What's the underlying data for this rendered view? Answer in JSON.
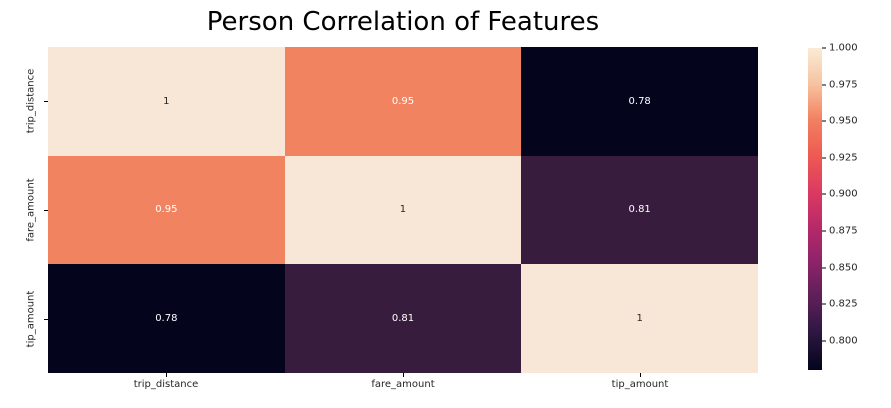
{
  "figure": {
    "title": "Person Correlation of Features"
  },
  "chart_data": {
    "type": "heatmap",
    "title": "Person Correlation of Features",
    "categories": [
      "trip_distance",
      "fare_amount",
      "tip_amount"
    ],
    "rows": [
      "trip_distance",
      "fare_amount",
      "tip_amount"
    ],
    "matrix": [
      [
        1.0,
        0.95,
        0.78
      ],
      [
        0.95,
        1.0,
        0.81
      ],
      [
        0.78,
        0.81,
        1.0
      ]
    ],
    "cell_labels": [
      [
        "1",
        "0.95",
        "0.78"
      ],
      [
        "0.95",
        "1",
        "0.81"
      ],
      [
        "0.78",
        "0.81",
        "1"
      ]
    ],
    "cell_colors": [
      [
        "#f8e7d7",
        "#f28360",
        "#04051c"
      ],
      [
        "#f28360",
        "#f8e7d7",
        "#381c3e"
      ],
      [
        "#04051c",
        "#381c3e",
        "#f8e7d7"
      ]
    ],
    "cell_text_colors": [
      [
        "#262626",
        "#ffffff",
        "#ffffff"
      ],
      [
        "#ffffff",
        "#262626",
        "#ffffff"
      ],
      [
        "#ffffff",
        "#ffffff",
        "#262626"
      ]
    ],
    "colormap": "rocket",
    "vmin": 0.78,
    "vmax": 1.0,
    "legend_position": "right",
    "colorbar": {
      "ticks": [
        "1.000",
        "0.975",
        "0.950",
        "0.925",
        "0.900",
        "0.875",
        "0.850",
        "0.825",
        "0.800"
      ],
      "gradient_stops": [
        "#faebd6",
        "#f6c3a1",
        "#f28160",
        "#ee5a52",
        "#dc3b61",
        "#b82969",
        "#8c2369",
        "#5c1f58",
        "#2b1640",
        "#03051a"
      ]
    }
  }
}
